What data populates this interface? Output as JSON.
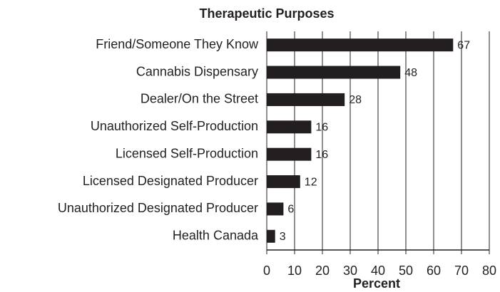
{
  "chart_data": {
    "type": "barh",
    "title": "Therapeutic Purposes",
    "x_label": "Percent",
    "categories": [
      "Friend/Someone They Know",
      "Cannabis Dispensary",
      "Dealer/On the Street",
      "Unauthorized Self-Production",
      "Licensed Self-Production",
      "Licensed Designated Producer",
      "Unauthorized Designated Producer",
      "Health Canada"
    ],
    "values": [
      67,
      48,
      28,
      16,
      16,
      12,
      6,
      3
    ],
    "color": "#231f20",
    "xlim": [
      0,
      80
    ],
    "xticks": [
      0,
      10,
      20,
      30,
      40,
      50,
      60,
      70,
      80
    ],
    "grid": true
  }
}
